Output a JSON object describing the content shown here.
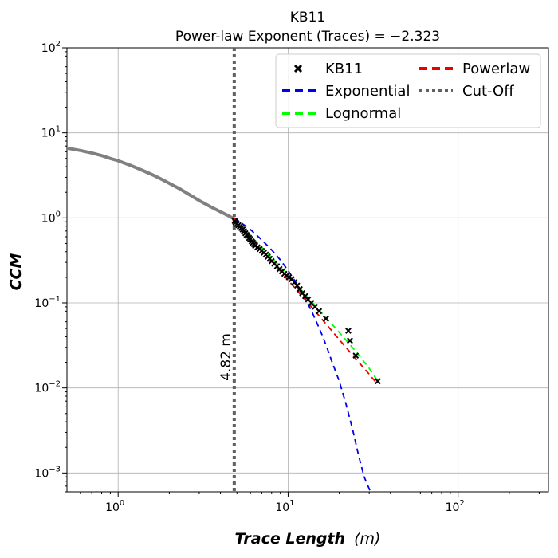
{
  "chart_data": {
    "type": "scatter",
    "title": "KB11",
    "subtitle": "Power-law Exponent (Traces) = −2.323",
    "xlabel_main": "Trace Length",
    "xlabel_unit": "(m)",
    "ylabel": "CCM",
    "x_scale": "log",
    "y_scale": "log",
    "xlim": [
      0.5,
      340
    ],
    "ylim": [
      0.0006,
      100
    ],
    "grid": true,
    "legend_position": "top-right",
    "x_ticks": [
      {
        "value": 1,
        "base": "10",
        "exp": "0"
      },
      {
        "value": 10,
        "base": "10",
        "exp": "1"
      },
      {
        "value": 100,
        "base": "10",
        "exp": "2"
      }
    ],
    "y_ticks": [
      {
        "value": 0.001,
        "base": "10",
        "exp": "−3"
      },
      {
        "value": 0.01,
        "base": "10",
        "exp": "−2"
      },
      {
        "value": 0.1,
        "base": "10",
        "exp": "−1"
      },
      {
        "value": 1,
        "base": "10",
        "exp": "0"
      },
      {
        "value": 10,
        "base": "10",
        "exp": "1"
      },
      {
        "value": 100,
        "base": "10",
        "exp": "2"
      }
    ],
    "cutoff": {
      "value": 4.82,
      "label": "4.82 m",
      "color": "#606060"
    },
    "series": [
      {
        "name": "KB11",
        "kind": "points",
        "color": "#000000",
        "x": [
          4.85,
          4.9,
          5.0,
          5.1,
          5.2,
          5.3,
          5.4,
          5.5,
          5.6,
          5.7,
          5.8,
          5.9,
          6.0,
          6.1,
          6.2,
          6.3,
          6.4,
          6.6,
          6.8,
          7.0,
          7.2,
          7.4,
          7.6,
          7.8,
          8.0,
          8.3,
          8.6,
          8.9,
          9.2,
          9.5,
          9.8,
          10.1,
          10.5,
          10.9,
          11.3,
          11.7,
          12.1,
          12.6,
          13.1,
          13.7,
          14.4,
          15.2,
          16.7,
          22.6,
          23.1,
          25.0,
          33.7
        ],
        "y": [
          0.92,
          0.88,
          0.85,
          0.82,
          0.79,
          0.76,
          0.73,
          0.7,
          0.66,
          0.63,
          0.61,
          0.58,
          0.56,
          0.53,
          0.51,
          0.49,
          0.47,
          0.45,
          0.43,
          0.41,
          0.39,
          0.37,
          0.35,
          0.33,
          0.31,
          0.29,
          0.27,
          0.25,
          0.235,
          0.22,
          0.21,
          0.2,
          0.19,
          0.175,
          0.16,
          0.145,
          0.13,
          0.12,
          0.11,
          0.1,
          0.09,
          0.08,
          0.065,
          0.047,
          0.036,
          0.024,
          0.012
        ]
      },
      {
        "name": "Exponential",
        "kind": "line",
        "dash": "dashed",
        "color": "#0000ee",
        "x": [
          4.82,
          6,
          7,
          8,
          9,
          10,
          11,
          12,
          13,
          14,
          15,
          16,
          17,
          18,
          20,
          22,
          24,
          26,
          28,
          30,
          31
        ],
        "y": [
          1.0,
          0.73,
          0.55,
          0.42,
          0.32,
          0.24,
          0.18,
          0.135,
          0.1,
          0.074,
          0.054,
          0.04,
          0.029,
          0.021,
          0.012,
          0.0063,
          0.0032,
          0.0016,
          0.0009,
          0.00065,
          0.00055
        ]
      },
      {
        "name": "Lognormal",
        "kind": "line",
        "dash": "dashed",
        "color": "#00ff00",
        "x": [
          4.82,
          6,
          8,
          10,
          12,
          15,
          20,
          25,
          30,
          33.7
        ],
        "y": [
          0.98,
          0.62,
          0.34,
          0.21,
          0.14,
          0.085,
          0.045,
          0.027,
          0.017,
          0.012
        ]
      },
      {
        "name": "Powerlaw",
        "kind": "line",
        "dash": "dashed",
        "color": "#ee0000",
        "x": [
          4.82,
          6,
          8,
          10,
          12,
          15,
          20,
          25,
          30,
          33.7
        ],
        "y": [
          1.0,
          0.6,
          0.31,
          0.185,
          0.122,
          0.073,
          0.037,
          0.022,
          0.0145,
          0.011
        ]
      },
      {
        "name": "Cut-Off",
        "kind": "vline",
        "dash": "dotted",
        "color": "#606060"
      }
    ],
    "full_data_curve": {
      "color": "#808080",
      "x": [
        0.5,
        0.6,
        0.7,
        0.8,
        0.9,
        1.0,
        1.2,
        1.4,
        1.6,
        1.8,
        2.0,
        2.3,
        2.6,
        3.0,
        3.5,
        4.0,
        4.5,
        4.82
      ],
      "y": [
        6.6,
        6.2,
        5.8,
        5.4,
        5.0,
        4.7,
        4.1,
        3.6,
        3.2,
        2.85,
        2.55,
        2.2,
        1.9,
        1.6,
        1.35,
        1.18,
        1.05,
        0.97
      ]
    },
    "legend": {
      "columns": [
        [
          "KB11",
          "Exponential",
          "Lognormal"
        ],
        [
          "Powerlaw",
          "Cut-Off"
        ]
      ]
    }
  }
}
